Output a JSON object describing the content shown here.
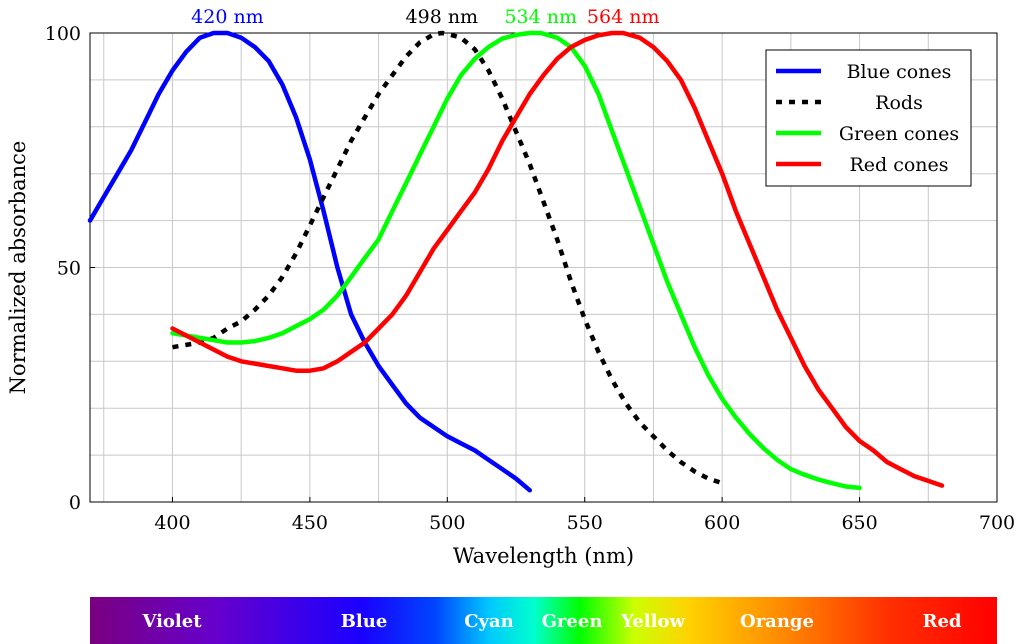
{
  "chart_data": {
    "type": "line",
    "xlabel": "Wavelength (nm)",
    "ylabel": "Normalized absorbance",
    "xlim": [
      370,
      700
    ],
    "ylim": [
      0,
      100
    ],
    "x_ticks": [
      400,
      450,
      500,
      550,
      600,
      650,
      700
    ],
    "y_ticks": [
      0,
      50,
      100
    ],
    "grid": true,
    "legend_position": "top-right",
    "series": [
      {
        "name": "Blue cones",
        "color": "#0000ff",
        "dash": "solid",
        "points": [
          [
            370,
            60
          ],
          [
            375,
            65
          ],
          [
            380,
            70
          ],
          [
            385,
            75
          ],
          [
            390,
            81
          ],
          [
            395,
            87
          ],
          [
            400,
            92
          ],
          [
            405,
            96
          ],
          [
            410,
            99
          ],
          [
            415,
            100
          ],
          [
            420,
            100
          ],
          [
            425,
            99
          ],
          [
            430,
            97
          ],
          [
            435,
            94
          ],
          [
            440,
            89
          ],
          [
            445,
            82
          ],
          [
            450,
            73
          ],
          [
            455,
            62
          ],
          [
            460,
            50
          ],
          [
            465,
            40
          ],
          [
            470,
            34
          ],
          [
            475,
            29
          ],
          [
            480,
            25
          ],
          [
            485,
            21
          ],
          [
            490,
            18
          ],
          [
            495,
            16
          ],
          [
            500,
            14
          ],
          [
            505,
            12.5
          ],
          [
            510,
            11
          ],
          [
            515,
            9
          ],
          [
            520,
            7
          ],
          [
            525,
            5
          ],
          [
            530,
            2.5
          ]
        ]
      },
      {
        "name": "Rods",
        "color": "#000000",
        "dash": "dashed",
        "points": [
          [
            400,
            33
          ],
          [
            405,
            33.5
          ],
          [
            410,
            34
          ],
          [
            415,
            35
          ],
          [
            420,
            37
          ],
          [
            425,
            38.5
          ],
          [
            430,
            41
          ],
          [
            435,
            44
          ],
          [
            440,
            48
          ],
          [
            445,
            53
          ],
          [
            450,
            59
          ],
          [
            455,
            65
          ],
          [
            460,
            71
          ],
          [
            465,
            77
          ],
          [
            470,
            82
          ],
          [
            475,
            87
          ],
          [
            480,
            91
          ],
          [
            485,
            95
          ],
          [
            490,
            98
          ],
          [
            495,
            99.7
          ],
          [
            498,
            100
          ],
          [
            500,
            99.8
          ],
          [
            505,
            99
          ],
          [
            510,
            96.5
          ],
          [
            515,
            92
          ],
          [
            520,
            86
          ],
          [
            525,
            79
          ],
          [
            530,
            72
          ],
          [
            535,
            64
          ],
          [
            540,
            56
          ],
          [
            545,
            47
          ],
          [
            550,
            39
          ],
          [
            555,
            32
          ],
          [
            560,
            26
          ],
          [
            565,
            21
          ],
          [
            570,
            17
          ],
          [
            575,
            14
          ],
          [
            580,
            11
          ],
          [
            585,
            8.5
          ],
          [
            590,
            6.5
          ],
          [
            595,
            5
          ],
          [
            600,
            4
          ]
        ]
      },
      {
        "name": "Green cones",
        "color": "#00ff00",
        "dash": "solid",
        "points": [
          [
            400,
            36
          ],
          [
            405,
            35.5
          ],
          [
            410,
            35
          ],
          [
            415,
            34.5
          ],
          [
            420,
            34
          ],
          [
            425,
            34
          ],
          [
            430,
            34.3
          ],
          [
            435,
            35
          ],
          [
            440,
            36
          ],
          [
            445,
            37.5
          ],
          [
            450,
            39
          ],
          [
            455,
            41
          ],
          [
            460,
            44
          ],
          [
            465,
            48
          ],
          [
            470,
            52
          ],
          [
            475,
            56
          ],
          [
            480,
            62
          ],
          [
            485,
            68
          ],
          [
            490,
            74
          ],
          [
            495,
            80
          ],
          [
            500,
            86
          ],
          [
            505,
            91
          ],
          [
            510,
            94.5
          ],
          [
            515,
            97
          ],
          [
            520,
            98.8
          ],
          [
            525,
            99.6
          ],
          [
            530,
            100
          ],
          [
            534,
            100
          ],
          [
            540,
            99
          ],
          [
            545,
            97
          ],
          [
            550,
            93
          ],
          [
            555,
            87
          ],
          [
            560,
            79
          ],
          [
            565,
            71
          ],
          [
            570,
            63
          ],
          [
            575,
            55
          ],
          [
            580,
            47
          ],
          [
            585,
            40
          ],
          [
            590,
            33
          ],
          [
            595,
            27
          ],
          [
            600,
            22
          ],
          [
            605,
            18
          ],
          [
            610,
            14.5
          ],
          [
            615,
            11.5
          ],
          [
            620,
            9
          ],
          [
            625,
            7
          ],
          [
            630,
            5.8
          ],
          [
            635,
            4.8
          ],
          [
            640,
            4
          ],
          [
            645,
            3.3
          ],
          [
            650,
            3
          ]
        ]
      },
      {
        "name": "Red cones",
        "color": "#ff0000",
        "dash": "solid",
        "points": [
          [
            400,
            37
          ],
          [
            405,
            35.5
          ],
          [
            410,
            34
          ],
          [
            415,
            32.5
          ],
          [
            420,
            31
          ],
          [
            425,
            30
          ],
          [
            430,
            29.5
          ],
          [
            435,
            29
          ],
          [
            440,
            28.5
          ],
          [
            445,
            28
          ],
          [
            450,
            28
          ],
          [
            455,
            28.5
          ],
          [
            460,
            30
          ],
          [
            465,
            32
          ],
          [
            470,
            34
          ],
          [
            475,
            37
          ],
          [
            480,
            40
          ],
          [
            485,
            44
          ],
          [
            490,
            49
          ],
          [
            495,
            54
          ],
          [
            500,
            58
          ],
          [
            505,
            62
          ],
          [
            510,
            66
          ],
          [
            515,
            71
          ],
          [
            520,
            77
          ],
          [
            525,
            82
          ],
          [
            530,
            87
          ],
          [
            535,
            91
          ],
          [
            540,
            94.5
          ],
          [
            545,
            97
          ],
          [
            550,
            98.5
          ],
          [
            555,
            99.5
          ],
          [
            560,
            100
          ],
          [
            564,
            100
          ],
          [
            570,
            99
          ],
          [
            575,
            97
          ],
          [
            580,
            94
          ],
          [
            585,
            90
          ],
          [
            590,
            84
          ],
          [
            595,
            77
          ],
          [
            600,
            70
          ],
          [
            605,
            62
          ],
          [
            610,
            55
          ],
          [
            615,
            48
          ],
          [
            620,
            41
          ],
          [
            625,
            35
          ],
          [
            630,
            29
          ],
          [
            635,
            24
          ],
          [
            640,
            20
          ],
          [
            645,
            16
          ],
          [
            650,
            13
          ],
          [
            655,
            11
          ],
          [
            660,
            8.5
          ],
          [
            665,
            7
          ],
          [
            670,
            5.5
          ],
          [
            675,
            4.5
          ],
          [
            680,
            3.5
          ]
        ]
      }
    ],
    "peak_labels": [
      {
        "text": "420 nm",
        "x": 420,
        "color": "#0000ff"
      },
      {
        "text": "498 nm",
        "x": 498,
        "color": "#000000"
      },
      {
        "text": "534 nm",
        "x": 534,
        "color": "#00ff00"
      },
      {
        "text": "564 nm",
        "x": 564,
        "color": "#ff0000"
      }
    ],
    "spectrum_bar": {
      "labels": [
        "Violet",
        "Blue",
        "Cyan",
        "Green",
        "Yellow",
        "Orange",
        "Red"
      ]
    }
  }
}
